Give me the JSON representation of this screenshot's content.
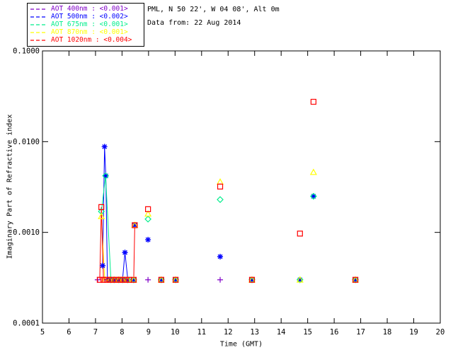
{
  "header": {
    "site_line": "PML, N 50 22', W 04 08', Alt 0m",
    "date_line": "Data from: 22 Aug 2014"
  },
  "legend": {
    "entries": [
      {
        "label": "AOT  400nm : <0.001>",
        "color": "#8000C8",
        "dash_icon": "dashed-line-icon"
      },
      {
        "label": "AOT  500nm : <0.002>",
        "color": "#0000FF",
        "dash_icon": "dashed-line-icon"
      },
      {
        "label": "AOT  675nm : <0.001>",
        "color": "#00EE8C",
        "dash_icon": "dashed-line-icon"
      },
      {
        "label": "AOT  870nm : <0.001>",
        "color": "#FFFF00",
        "dash_icon": "dashed-line-icon"
      },
      {
        "label": "AOT 1020nm : <0.004>",
        "color": "#FF0000",
        "dash_icon": "dashed-line-icon"
      }
    ]
  },
  "chart_data": {
    "type": "line",
    "title": "",
    "xlabel": "Time (GMT)",
    "ylabel": "Imaginary Part of Refractive index",
    "x_range": [
      5,
      20
    ],
    "y_range": [
      0.0001,
      0.1
    ],
    "y_scale": "log",
    "grid": false,
    "legend_position": "top-left",
    "x_ticks": [
      5,
      6,
      7,
      8,
      9,
      10,
      11,
      12,
      13,
      14,
      15,
      16,
      17,
      18,
      19,
      20
    ],
    "y_ticks": [
      [
        0.0001,
        "0.0001"
      ],
      [
        0.001,
        "0.0010"
      ],
      [
        0.01,
        "0.0100"
      ],
      [
        0.1,
        "0.1000"
      ]
    ],
    "frame_color": "#000000",
    "series": [
      {
        "name": "AOT 400nm",
        "marker": "plus",
        "color": "#8000C8",
        "line_until": 0,
        "points": [
          [
            7.08,
            0.0003
          ],
          [
            8.98,
            0.0003
          ],
          [
            9.48,
            0.0003
          ],
          [
            10.02,
            0.0003
          ],
          [
            11.7,
            0.0003
          ],
          [
            12.9,
            0.0003
          ],
          [
            16.8,
            0.0003
          ]
        ]
      },
      {
        "name": "AOT 500nm",
        "marker": "asterisk",
        "color": "#0000FF",
        "line_until": 8.45,
        "points": [
          [
            7.27,
            0.00043
          ],
          [
            7.34,
            0.0088
          ],
          [
            7.39,
            0.0042
          ],
          [
            7.45,
            0.0003
          ],
          [
            7.54,
            0.0003
          ],
          [
            7.7,
            0.0003
          ],
          [
            7.88,
            0.0003
          ],
          [
            8.02,
            0.0003
          ],
          [
            8.11,
            0.0006
          ],
          [
            8.22,
            0.0003
          ],
          [
            8.44,
            0.0003
          ],
          [
            8.48,
            0.0012
          ],
          [
            8.98,
            0.00083
          ],
          [
            9.48,
            0.0003
          ],
          [
            10.02,
            0.0003
          ],
          [
            11.7,
            0.00054
          ],
          [
            12.9,
            0.0003
          ],
          [
            14.71,
            0.0003
          ],
          [
            15.22,
            0.0025
          ],
          [
            16.8,
            0.0003
          ]
        ]
      },
      {
        "name": "AOT 675nm",
        "marker": "diamond",
        "color": "#00EE8C",
        "line_until": 8.45,
        "points": [
          [
            7.22,
            0.0017
          ],
          [
            7.38,
            0.0042
          ],
          [
            7.58,
            0.0003
          ],
          [
            7.7,
            0.0003
          ],
          [
            7.88,
            0.0003
          ],
          [
            8.02,
            0.0003
          ],
          [
            8.22,
            0.0003
          ],
          [
            8.44,
            0.0003
          ],
          [
            8.98,
            0.0014
          ],
          [
            9.48,
            0.0003
          ],
          [
            10.02,
            0.0003
          ],
          [
            11.7,
            0.0023
          ],
          [
            12.9,
            0.0003
          ],
          [
            14.71,
            0.0003
          ],
          [
            15.22,
            0.0025
          ],
          [
            16.8,
            0.0003
          ]
        ]
      },
      {
        "name": "AOT 870nm",
        "marker": "triangle",
        "color": "#FFFF00",
        "line_until": 8.45,
        "points": [
          [
            7.22,
            0.0015
          ],
          [
            7.35,
            0.0003
          ],
          [
            7.54,
            0.0003
          ],
          [
            7.7,
            0.0003
          ],
          [
            7.88,
            0.0003
          ],
          [
            8.02,
            0.0003
          ],
          [
            8.22,
            0.0003
          ],
          [
            8.44,
            0.0003
          ],
          [
            8.48,
            0.0012
          ],
          [
            8.98,
            0.0016
          ],
          [
            9.48,
            0.0003
          ],
          [
            10.02,
            0.0003
          ],
          [
            11.7,
            0.0036
          ],
          [
            12.9,
            0.0003
          ],
          [
            14.71,
            0.0003
          ],
          [
            15.22,
            0.0046
          ],
          [
            16.8,
            0.0003
          ]
        ]
      },
      {
        "name": "AOT 1020nm",
        "marker": "square",
        "color": "#FF0000",
        "line_until": 8.6,
        "points": [
          [
            7.16,
            0.0003
          ],
          [
            7.22,
            0.0019
          ],
          [
            7.3,
            0.0003
          ],
          [
            7.42,
            0.0003
          ],
          [
            7.54,
            0.0003
          ],
          [
            7.66,
            0.0003
          ],
          [
            7.78,
            0.0003
          ],
          [
            7.9,
            0.0003
          ],
          [
            8.02,
            0.0003
          ],
          [
            8.14,
            0.0003
          ],
          [
            8.26,
            0.0003
          ],
          [
            8.44,
            0.0003
          ],
          [
            8.48,
            0.0012
          ],
          [
            8.98,
            0.0018
          ],
          [
            9.48,
            0.0003
          ],
          [
            10.02,
            0.0003
          ],
          [
            11.7,
            0.0032
          ],
          [
            12.9,
            0.0003
          ],
          [
            14.71,
            0.00097
          ],
          [
            15.22,
            0.0275
          ],
          [
            16.8,
            0.0003
          ]
        ]
      }
    ]
  }
}
